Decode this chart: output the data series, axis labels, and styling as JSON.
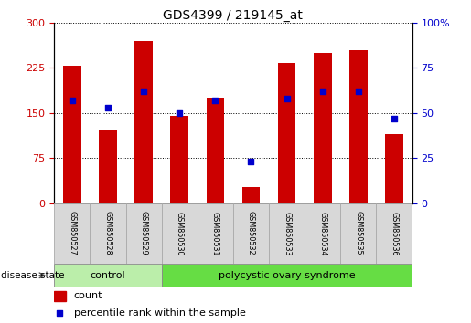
{
  "title": "GDS4399 / 219145_at",
  "samples": [
    "GSM850527",
    "GSM850528",
    "GSM850529",
    "GSM850530",
    "GSM850531",
    "GSM850532",
    "GSM850533",
    "GSM850534",
    "GSM850535",
    "GSM850536"
  ],
  "counts": [
    228,
    122,
    270,
    145,
    175,
    28,
    233,
    250,
    255,
    115
  ],
  "percentiles": [
    57,
    53,
    62,
    50,
    57,
    23,
    58,
    62,
    62,
    47
  ],
  "left_ylim": [
    0,
    300
  ],
  "right_ylim": [
    0,
    100
  ],
  "left_yticks": [
    0,
    75,
    150,
    225,
    300
  ],
  "right_yticks": [
    0,
    25,
    50,
    75,
    100
  ],
  "right_yticklabels": [
    "0",
    "25",
    "50",
    "75",
    "100%"
  ],
  "bar_color": "#cc0000",
  "scatter_color": "#0000cc",
  "control_color": "#bbeeaa",
  "pcos_color": "#66dd44",
  "control_indices": [
    0,
    1,
    2
  ],
  "pcos_indices": [
    3,
    4,
    5,
    6,
    7,
    8,
    9
  ],
  "control_label": "control",
  "pcos_label": "polycystic ovary syndrome",
  "disease_state_label": "disease state",
  "legend_count_label": "count",
  "legend_percentile_label": "percentile rank within the sample",
  "tick_label_color_left": "#cc0000",
  "tick_label_color_right": "#0000cc",
  "label_box_color": "#d8d8d8",
  "bar_width": 0.5
}
